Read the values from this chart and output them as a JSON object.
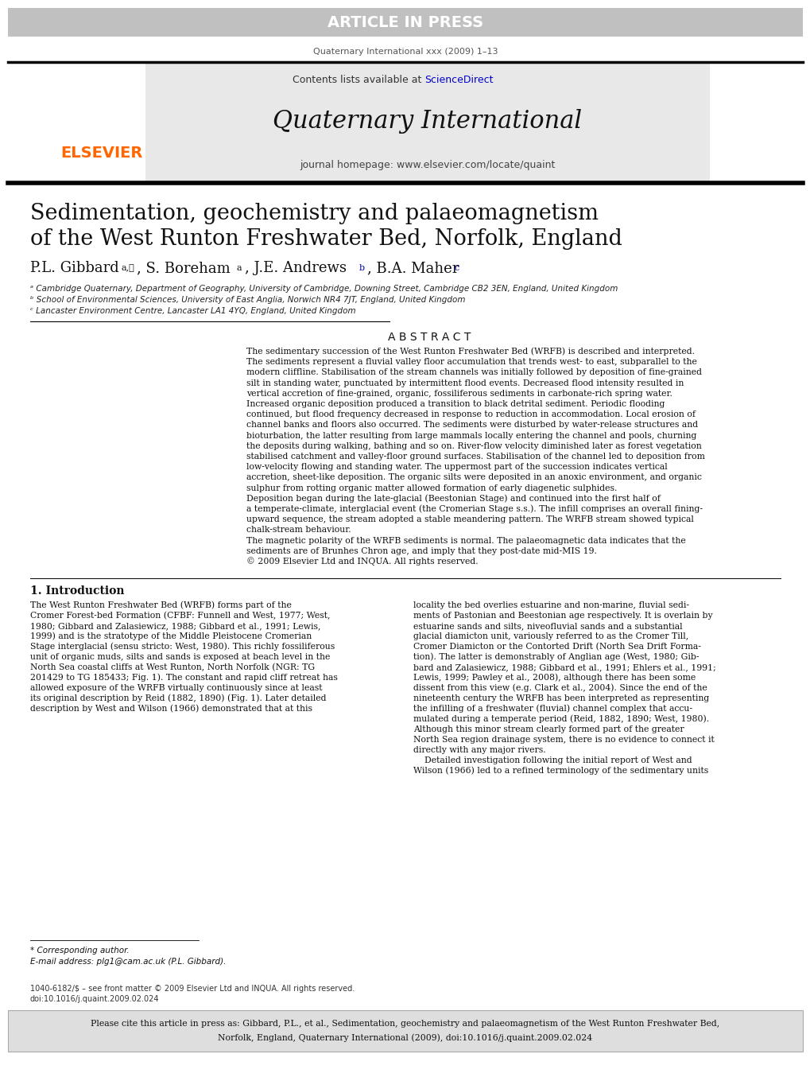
{
  "page_bg": "#ffffff",
  "header_bar_color": "#c0c0c0",
  "header_bar_text": "ARTICLE IN PRESS",
  "header_bar_text_color": "#ffffff",
  "journal_line": "Quaternary International xxx (2009) 1–13",
  "journal_line_color": "#555555",
  "journal_header_bg": "#e8e8e8",
  "journal_name": "Quaternary International",
  "contents_text": "Contents lists available at ",
  "sciencedirect_text": "ScienceDirect",
  "sciencedirect_color": "#0000cc",
  "homepage_text": "journal homepage: www.elsevier.com/locate/quaint",
  "elsevier_color": "#ff6600",
  "article_title_line1": "Sedimentation, geochemistry and palaeomagnetism",
  "article_title_line2": "of the West Runton Freshwater Bed, Norfolk, England",
  "affil_a": "ᵃ Cambridge Quaternary, Department of Geography, University of Cambridge, Downing Street, Cambridge CB2 3EN, England, United Kingdom",
  "affil_b": "ᵇ School of Environmental Sciences, University of East Anglia, Norwich NR4 7JT, England, United Kingdom",
  "affil_c": "ᶜ Lancaster Environment Centre, Lancaster LA1 4YQ, England, United Kingdom",
  "abstract_title": "A B S T R A C T",
  "abstract_text": "The sedimentary succession of the West Runton Freshwater Bed (WRFB) is described and interpreted.\nThe sediments represent a fluvial valley floor accumulation that trends west- to east, subparallel to the\nmodern cliffline. Stabilisation of the stream channels was initially followed by deposition of fine-grained\nsilt in standing water, punctuated by intermittent flood events. Decreased flood intensity resulted in\nvertical accretion of fine-grained, organic, fossiliferous sediments in carbonate-rich spring water.\nIncreased organic deposition produced a transition to black detrital sediment. Periodic flooding\ncontinued, but flood frequency decreased in response to reduction in accommodation. Local erosion of\nchannel banks and floors also occurred. The sediments were disturbed by water-release structures and\nbioturbation, the latter resulting from large mammals locally entering the channel and pools, churning\nthe deposits during walking, bathing and so on. River-flow velocity diminished later as forest vegetation\nstabilised catchment and valley-floor ground surfaces. Stabilisation of the channel led to deposition from\nlow-velocity flowing and standing water. The uppermost part of the succession indicates vertical\naccretion, sheet-like deposition. The organic silts were deposited in an anoxic environment, and organic\nsulphur from rotting organic matter allowed formation of early diagenetic sulphides.\nDeposition began during the late-glacial (Beestonian Stage) and continued into the first half of\na temperate-climate, interglacial event (the Cromerian Stage s.s.). The infill comprises an overall fining-\nupward sequence, the stream adopted a stable meandering pattern. The WRFB stream showed typical\nchalk-stream behaviour.\nThe magnetic polarity of the WRFB sediments is normal. The palaeomagnetic data indicates that the\nsediments are of Brunhes Chron age, and imply that they post-date mid-MIS 19.\n© 2009 Elsevier Ltd and INQUA. All rights reserved.",
  "section1_title": "1. Introduction",
  "section1_col1": "The West Runton Freshwater Bed (WRFB) forms part of the\nCromer Forest-bed Formation (CFBF: Funnell and West, 1977; West,\n1980; Gibbard and Zalasiewicz, 1988; Gibbard et al., 1991; Lewis,\n1999) and is the stratotype of the Middle Pleistocene Cromerian\nStage interglacial (sensu stricto: West, 1980). This richly fossiliferous\nunit of organic muds, silts and sands is exposed at beach level in the\nNorth Sea coastal cliffs at West Runton, North Norfolk (NGR: TG\n201429 to TG 185433; Fig. 1). The constant and rapid cliff retreat has\nallowed exposure of the WRFB virtually continuously since at least\nits original description by Reid (1882, 1890) (Fig. 1). Later detailed\ndescription by West and Wilson (1966) demonstrated that at this",
  "section1_col2": "locality the bed overlies estuarine and non-marine, fluvial sedi-\nments of Pastonian and Beestonian age respectively. It is overlain by\nestuarine sands and silts, niveofluvial sands and a substantial\nglacial diamicton unit, variously referred to as the Cromer Till,\nCromer Diamicton or the Contorted Drift (North Sea Drift Forma-\ntion). The latter is demonstrably of Anglian age (West, 1980; Gib-\nbard and Zalasiewicz, 1988; Gibbard et al., 1991; Ehlers et al., 1991;\nLewis, 1999; Pawley et al., 2008), although there has been some\ndissent from this view (e.g. Clark et al., 2004). Since the end of the\nnineteenth century the WRFB has been interpreted as representing\nthe infilling of a freshwater (fluvial) channel complex that accu-\nmulated during a temperate period (Reid, 1882, 1890; West, 1980).\nAlthough this minor stream clearly formed part of the greater\nNorth Sea region drainage system, there is no evidence to connect it\ndirectly with any major rivers.\n    Detailed investigation following the initial report of West and\nWilson (1966) led to a refined terminology of the sedimentary units",
  "corr_author": "* Corresponding author.",
  "corr_email": "E-mail address: plg1@cam.ac.uk (P.L. Gibbard).",
  "footer_line1": "1040-6182/$ – see front matter © 2009 Elsevier Ltd and INQUA. All rights reserved.",
  "footer_line2": "doi:10.1016/j.quaint.2009.02.024",
  "cite_box_line1": "Please cite this article in press as: Gibbard, P.L., et al., Sedimentation, geochemistry and palaeomagnetism of the West Runton Freshwater Bed,",
  "cite_box_line2": "Norfolk, England, Quaternary International (2009), doi:10.1016/j.quaint.2009.02.024",
  "cite_box_bg": "#dedede"
}
